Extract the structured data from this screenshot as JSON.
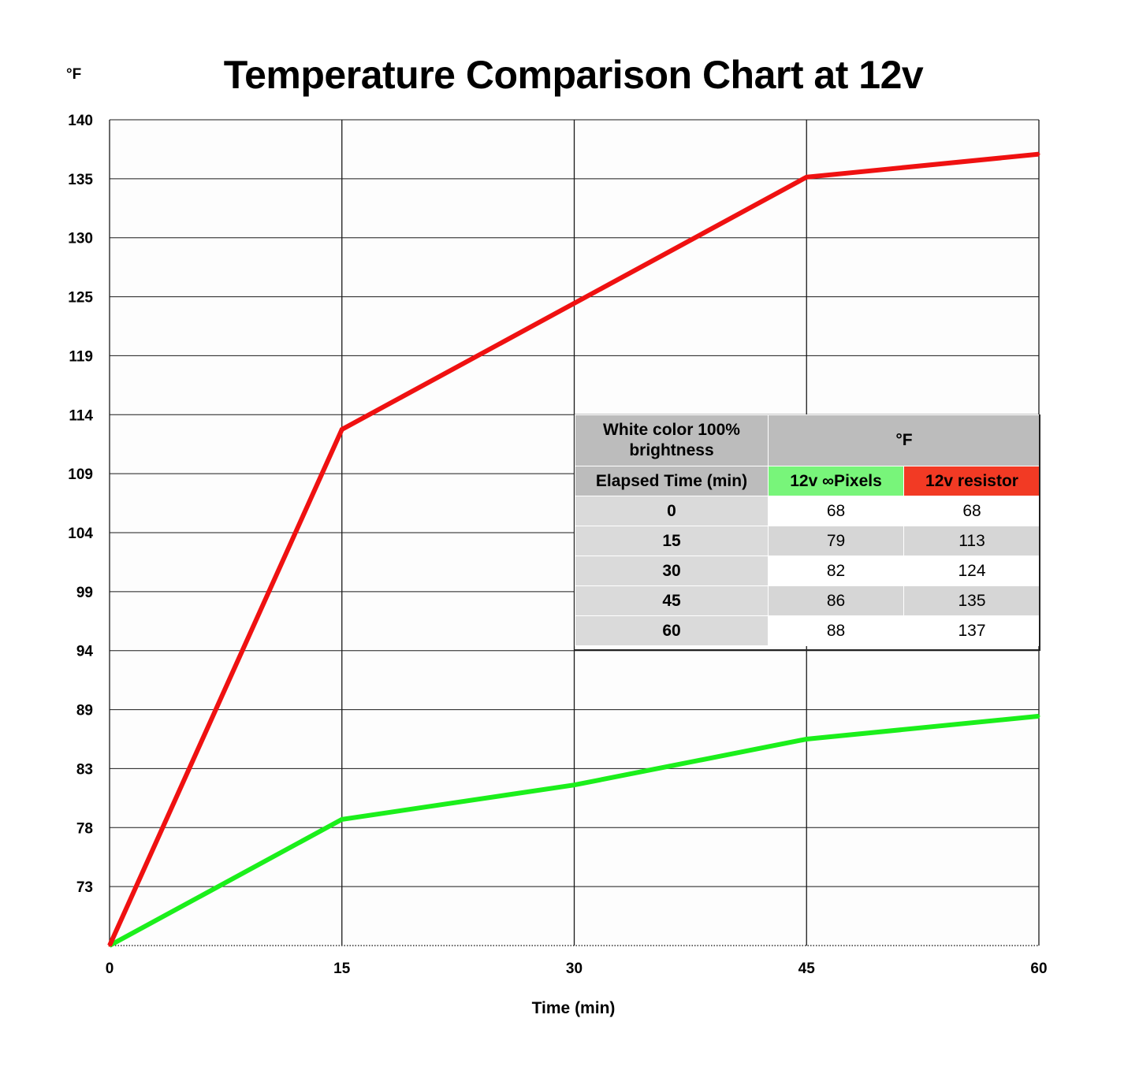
{
  "chart_data": {
    "type": "line",
    "title": "Temperature Comparison Chart at 12v",
    "ylabel": "°F",
    "xlabel": "Time (min)",
    "x": [
      0,
      15,
      30,
      45,
      60
    ],
    "x_ticks": [
      "0",
      "15",
      "30",
      "45",
      "60"
    ],
    "y_ticks": [
      "140",
      "135",
      "130",
      "125",
      "119",
      "114",
      "109",
      "104",
      "99",
      "94",
      "89",
      "83",
      "78",
      "73"
    ],
    "ylim": [
      68,
      140
    ],
    "grid": true,
    "series": [
      {
        "name": "12v ∞Pixels",
        "color": "#1bef1b",
        "values": [
          68,
          79,
          82,
          86,
          88
        ]
      },
      {
        "name": "12v resistor",
        "color": "#ef1111",
        "values": [
          68,
          113,
          124,
          135,
          137
        ]
      }
    ]
  },
  "table": {
    "header_left": "White color 100% brightness",
    "header_right": "°F",
    "col_time": "Elapsed Time (min)",
    "col_pixels": "12v ∞Pixels",
    "col_resistor": "12v resistor",
    "rows": [
      {
        "time": "0",
        "pixels": "68",
        "resistor": "68"
      },
      {
        "time": "15",
        "pixels": "79",
        "resistor": "113"
      },
      {
        "time": "30",
        "pixels": "82",
        "resistor": "124"
      },
      {
        "time": "45",
        "pixels": "86",
        "resistor": "135"
      },
      {
        "time": "60",
        "pixels": "88",
        "resistor": "137"
      }
    ]
  }
}
